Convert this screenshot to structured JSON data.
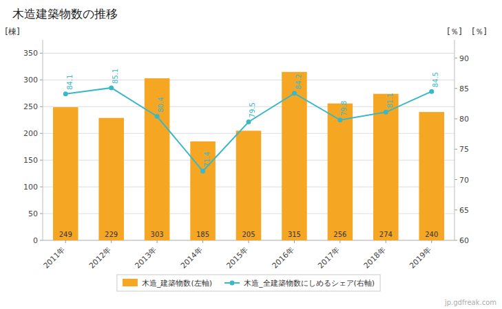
{
  "chart_data": {
    "type": "bar",
    "title": "木造建築物数の推移",
    "categories": [
      "2011年",
      "2012年",
      "2013年",
      "2014年",
      "2015年",
      "2016年",
      "2017年",
      "2018年",
      "2019年"
    ],
    "series": [
      {
        "name": "木造_建築物数(左軸)",
        "type": "bar",
        "color": "#f5a623",
        "values": [
          249,
          229,
          303,
          185,
          205,
          315,
          256,
          274,
          240
        ],
        "data_labels": true
      },
      {
        "name": "木造_全建築物数にしめるシェア(右軸)",
        "type": "line",
        "color": "#3bb8c8",
        "marker": "circle",
        "axis": "y2",
        "values": [
          84.1,
          85.1,
          80.4,
          71.4,
          79.5,
          84.2,
          79.8,
          81.1,
          84.5
        ],
        "data_labels": true
      }
    ],
    "y_label": "[棟]",
    "y2_labels": [
      "[％]",
      "[％]"
    ],
    "ylim": [
      0,
      375
    ],
    "yticks": [
      0,
      50,
      100,
      150,
      200,
      250,
      300,
      350
    ],
    "y2lim": [
      60.0,
      93.0
    ],
    "y2ticks": [
      60.0,
      65.0,
      70.0,
      75.0,
      80.0,
      85.0,
      90.0
    ],
    "grid": true,
    "legend": "bottom",
    "watermark": "jp.gdfreak.com"
  }
}
